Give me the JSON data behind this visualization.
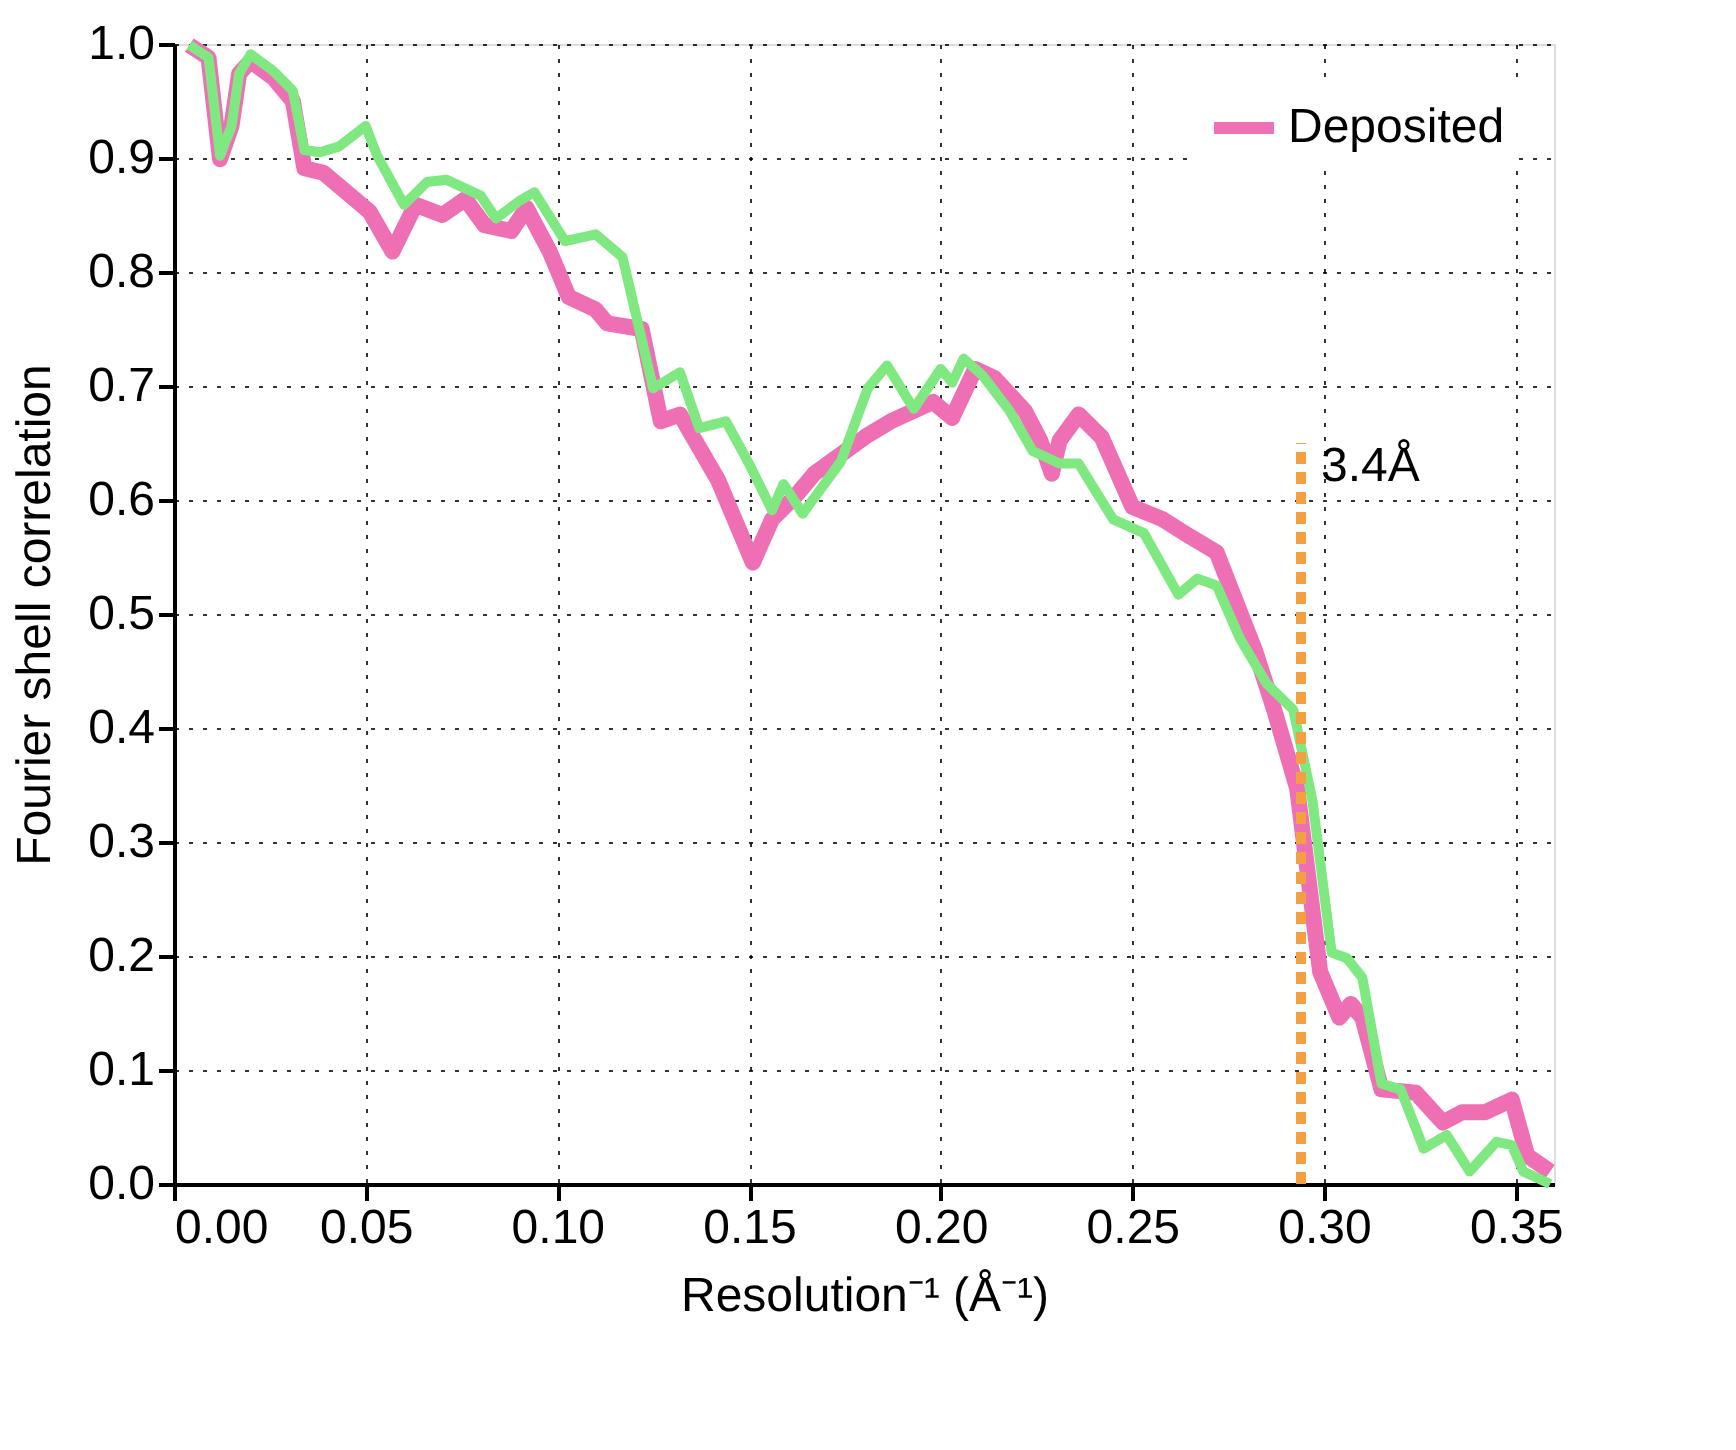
{
  "chart_data": {
    "type": "line",
    "xlabel": "Resolution⁻¹ (Å⁻¹)",
    "ylabel": "Fourier shell correlation",
    "xlim": [
      0,
      0.36
    ],
    "ylim": [
      0,
      1.0
    ],
    "xticks": [
      {
        "value": 0,
        "label": "0.00"
      },
      0.05,
      {
        "value": 0.1,
        "label": "0.10"
      },
      0.15,
      {
        "value": 0.2,
        "label": "0.20"
      },
      0.25,
      {
        "value": 0.3,
        "label": "0.30"
      },
      0.35
    ],
    "yticks": [
      {
        "value": 0,
        "label": "0.0"
      },
      0.1,
      0.2,
      0.3,
      0.4,
      0.5,
      0.6,
      0.7,
      0.8,
      0.9,
      {
        "value": 1,
        "label": "1.0"
      }
    ],
    "grid": true,
    "legend": "top right",
    "marker": "none",
    "line_style": "solid",
    "ref_lines": [
      {
        "axis": "x",
        "value": 0.294,
        "color": "#f4a040",
        "line_style": "dashed"
      }
    ],
    "annotations": [
      {
        "text": "3.4Å",
        "x": 0.294,
        "y": 0.65
      }
    ],
    "series": [
      {
        "name": "Deposited",
        "color": "#ee6fb4",
        "x": [
          0.004,
          0.009,
          0.012,
          0.015,
          0.017,
          0.02,
          0.026,
          0.031,
          0.034,
          0.039,
          0.051,
          0.057,
          0.063,
          0.07,
          0.076,
          0.081,
          0.088,
          0.092,
          0.098,
          0.103,
          0.11,
          0.113,
          0.122,
          0.127,
          0.132,
          0.142,
          0.151,
          0.156,
          0.162,
          0.167,
          0.181,
          0.187,
          0.198,
          0.203,
          0.209,
          0.214,
          0.222,
          0.226,
          0.229,
          0.231,
          0.236,
          0.242,
          0.25,
          0.258,
          0.265,
          0.272,
          0.282,
          0.287,
          0.293,
          0.299,
          0.304,
          0.307,
          0.31,
          0.315,
          0.324,
          0.331,
          0.336,
          0.342,
          0.349,
          0.353,
          0.359
        ],
        "values": [
          0.999,
          0.988,
          0.899,
          0.928,
          0.974,
          0.985,
          0.97,
          0.95,
          0.891,
          0.887,
          0.853,
          0.818,
          0.859,
          0.85,
          0.864,
          0.841,
          0.836,
          0.856,
          0.818,
          0.778,
          0.767,
          0.755,
          0.75,
          0.669,
          0.675,
          0.617,
          0.545,
          0.583,
          0.603,
          0.623,
          0.657,
          0.669,
          0.686,
          0.672,
          0.715,
          0.707,
          0.678,
          0.652,
          0.623,
          0.652,
          0.675,
          0.655,
          0.594,
          0.583,
          0.568,
          0.554,
          0.468,
          0.416,
          0.347,
          0.186,
          0.146,
          0.158,
          0.146,
          0.083,
          0.08,
          0.054,
          0.063,
          0.063,
          0.074,
          0.025,
          0.011
        ]
      },
      {
        "color": "#80e880",
        "x": [
          0.004,
          0.009,
          0.012,
          0.015,
          0.017,
          0.02,
          0.026,
          0.031,
          0.034,
          0.038,
          0.043,
          0.05,
          0.053,
          0.06,
          0.066,
          0.071,
          0.08,
          0.084,
          0.09,
          0.094,
          0.102,
          0.11,
          0.117,
          0.125,
          0.132,
          0.137,
          0.144,
          0.15,
          0.156,
          0.159,
          0.164,
          0.169,
          0.174,
          0.181,
          0.186,
          0.193,
          0.2,
          0.203,
          0.206,
          0.211,
          0.218,
          0.224,
          0.231,
          0.236,
          0.245,
          0.253,
          0.262,
          0.267,
          0.272,
          0.278,
          0.285,
          0.292,
          0.297,
          0.302,
          0.306,
          0.31,
          0.315,
          0.32,
          0.326,
          0.332,
          0.338,
          0.345,
          0.349,
          0.352,
          0.359
        ],
        "values": [
          0.999,
          0.988,
          0.902,
          0.928,
          0.974,
          0.991,
          0.976,
          0.959,
          0.907,
          0.905,
          0.91,
          0.928,
          0.902,
          0.859,
          0.879,
          0.881,
          0.867,
          0.847,
          0.862,
          0.87,
          0.827,
          0.833,
          0.813,
          0.698,
          0.712,
          0.663,
          0.669,
          0.632,
          0.591,
          0.614,
          0.588,
          0.611,
          0.634,
          0.698,
          0.718,
          0.68,
          0.715,
          0.703,
          0.724,
          0.709,
          0.678,
          0.643,
          0.632,
          0.632,
          0.583,
          0.571,
          0.517,
          0.531,
          0.525,
          0.479,
          0.439,
          0.416,
          0.336,
          0.203,
          0.198,
          0.181,
          0.088,
          0.083,
          0.031,
          0.043,
          0.011,
          0.037,
          0.034,
          0.011,
          0.0
        ]
      }
    ]
  }
}
